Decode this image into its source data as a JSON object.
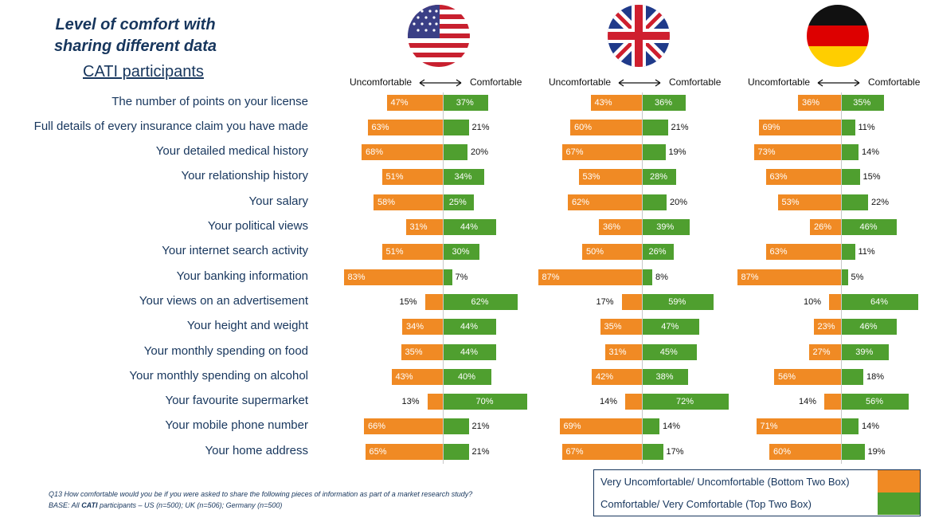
{
  "header": {
    "title_line1": "Level of comfort with",
    "title_line2": "sharing different data",
    "subtitle": "CATI participants"
  },
  "direction_labels": {
    "left": "Uncomfortable",
    "right": "Comfortable"
  },
  "countries": [
    {
      "flag": "us-flag-icon"
    },
    {
      "flag": "uk-flag-icon"
    },
    {
      "flag": "germany-flag-icon"
    }
  ],
  "colors": {
    "uncomfortable": "#f08a24",
    "comfortable": "#4f9f2f",
    "text": "#17365d"
  },
  "chart_data": {
    "type": "bar",
    "categories": [
      "The number of points on your license",
      "Full details of every insurance claim you have made",
      "Your detailed medical history",
      "Your relationship history",
      "Your salary",
      "Your political views",
      "Your internet search activity",
      "Your banking information",
      "Your views on an advertisement",
      "Your height and weight",
      "Your monthly spending on food",
      "Your monthly spending on alcohol",
      "Your favourite supermarket",
      "Your mobile phone number",
      "Your home address"
    ],
    "panels": [
      {
        "uncomfortable": [
          47,
          63,
          68,
          51,
          58,
          31,
          51,
          83,
          15,
          34,
          35,
          43,
          13,
          66,
          65
        ],
        "comfortable": [
          37,
          21,
          20,
          34,
          25,
          44,
          30,
          7,
          62,
          44,
          44,
          40,
          70,
          21,
          21
        ]
      },
      {
        "uncomfortable": [
          43,
          60,
          67,
          53,
          62,
          36,
          50,
          87,
          17,
          35,
          31,
          42,
          14,
          69,
          67
        ],
        "comfortable": [
          36,
          21,
          19,
          28,
          20,
          39,
          26,
          8,
          59,
          47,
          45,
          38,
          72,
          14,
          17
        ]
      },
      {
        "uncomfortable": [
          36,
          69,
          73,
          63,
          53,
          26,
          63,
          87,
          10,
          23,
          27,
          56,
          14,
          71,
          60
        ],
        "comfortable": [
          35,
          11,
          14,
          15,
          22,
          46,
          11,
          5,
          64,
          46,
          39,
          18,
          56,
          14,
          19
        ]
      }
    ]
  },
  "footnote": {
    "line1": "Q13 How comfortable would you be if you were asked to share the following pieces of information as part of a market research study?",
    "line2_prefix": "BASE: All ",
    "line2_bold": "CATI",
    "line2_suffix": " participants – US (n=500); UK (n=506); Germany (n=500)"
  },
  "legend": {
    "items": [
      {
        "label": "Very Uncomfortable/ Uncomfortable (Bottom Two Box)",
        "color": "#f08a24"
      },
      {
        "label": "Comfortable/ Very Comfortable (Top Two Box)",
        "color": "#4f9f2f"
      }
    ]
  }
}
